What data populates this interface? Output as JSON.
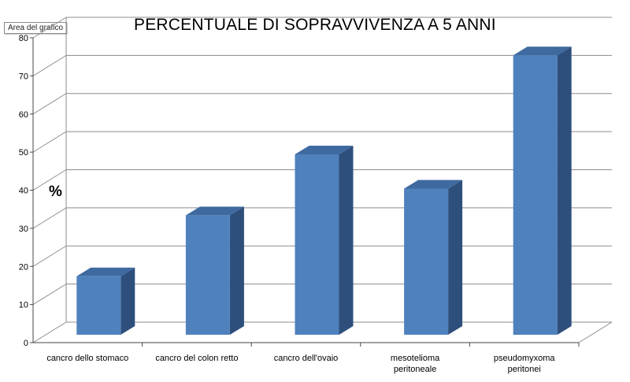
{
  "tooltip": "Area del grafico",
  "chart_data": {
    "type": "bar",
    "title": "PERCENTUALE DI SOPRAVVIVENZA A 5 ANNI",
    "ylabel": "%",
    "xlabel": "",
    "categories": [
      [
        "cancro dello stomaco"
      ],
      [
        "cancro del colon retto"
      ],
      [
        "cancro dell'ovaio"
      ],
      [
        "mesotelioma",
        "peritoneale"
      ],
      [
        "pseudomyxoma",
        "peritonei"
      ]
    ],
    "values": [
      17,
      33,
      49,
      40,
      75
    ],
    "ylim": [
      0,
      80
    ],
    "yticks": [
      0,
      10,
      20,
      30,
      40,
      50,
      60,
      70,
      80
    ],
    "grid": true,
    "legend": "none",
    "colors": {
      "bar_front": "#4f81bd",
      "bar_side": "#2e4f7c",
      "bar_top": "#3f6aa0",
      "grid": "#8c8c8c"
    }
  }
}
